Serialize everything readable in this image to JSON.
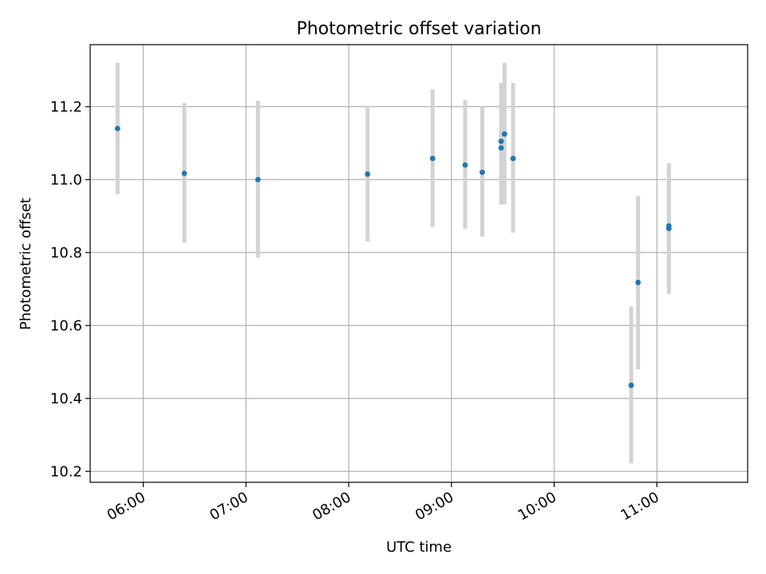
{
  "chart_data": {
    "type": "scatter",
    "title": "Photometric offset variation",
    "xlabel": "UTC time",
    "ylabel": "Photometric offset",
    "x_unit": "UTC time (HH:MM)",
    "xlim": [
      "05:29",
      "11:53"
    ],
    "ylim": [
      10.17,
      11.37
    ],
    "x_ticks": [
      "06:00",
      "07:00",
      "08:00",
      "09:00",
      "10:00",
      "11:00"
    ],
    "y_ticks": [
      "10.2",
      "10.4",
      "10.6",
      "10.8",
      "11.0",
      "11.2"
    ],
    "grid": true,
    "legend": "none",
    "point_color": "#1f77b4",
    "errorbar_color": "#d3d3d3",
    "series": [
      {
        "points": [
          {
            "t": "05:45",
            "y": 11.14,
            "lo": 10.96,
            "hi": 11.32
          },
          {
            "t": "06:24",
            "y": 11.017,
            "lo": 10.827,
            "hi": 11.21
          },
          {
            "t": "07:07",
            "y": 11.0,
            "lo": 10.786,
            "hi": 11.216
          },
          {
            "t": "08:11",
            "y": 11.015,
            "lo": 10.83,
            "hi": 11.197
          },
          {
            "t": "08:49",
            "y": 11.058,
            "lo": 10.87,
            "hi": 11.248
          },
          {
            "t": "09:08",
            "y": 11.04,
            "lo": 10.865,
            "hi": 11.218
          },
          {
            "t": "09:18",
            "y": 11.02,
            "lo": 10.843,
            "hi": 11.2
          },
          {
            "t": "09:29",
            "y": 11.105,
            "lo": 10.932,
            "hi": 11.265
          },
          {
            "t": "09:29",
            "y": 11.087,
            "lo": 10.932,
            "hi": 11.26
          },
          {
            "t": "09:31",
            "y": 11.125,
            "lo": 10.932,
            "hi": 11.32
          },
          {
            "t": "09:36",
            "y": 11.058,
            "lo": 10.855,
            "hi": 11.265
          },
          {
            "t": "10:45",
            "y": 10.436,
            "lo": 10.222,
            "hi": 10.652
          },
          {
            "t": "10:49",
            "y": 10.718,
            "lo": 10.48,
            "hi": 10.955
          },
          {
            "t": "11:07",
            "y": 10.873,
            "lo": 10.7,
            "hi": 11.045
          },
          {
            "t": "11:07",
            "y": 10.866,
            "lo": 10.686,
            "hi": 11.045
          }
        ]
      }
    ]
  }
}
